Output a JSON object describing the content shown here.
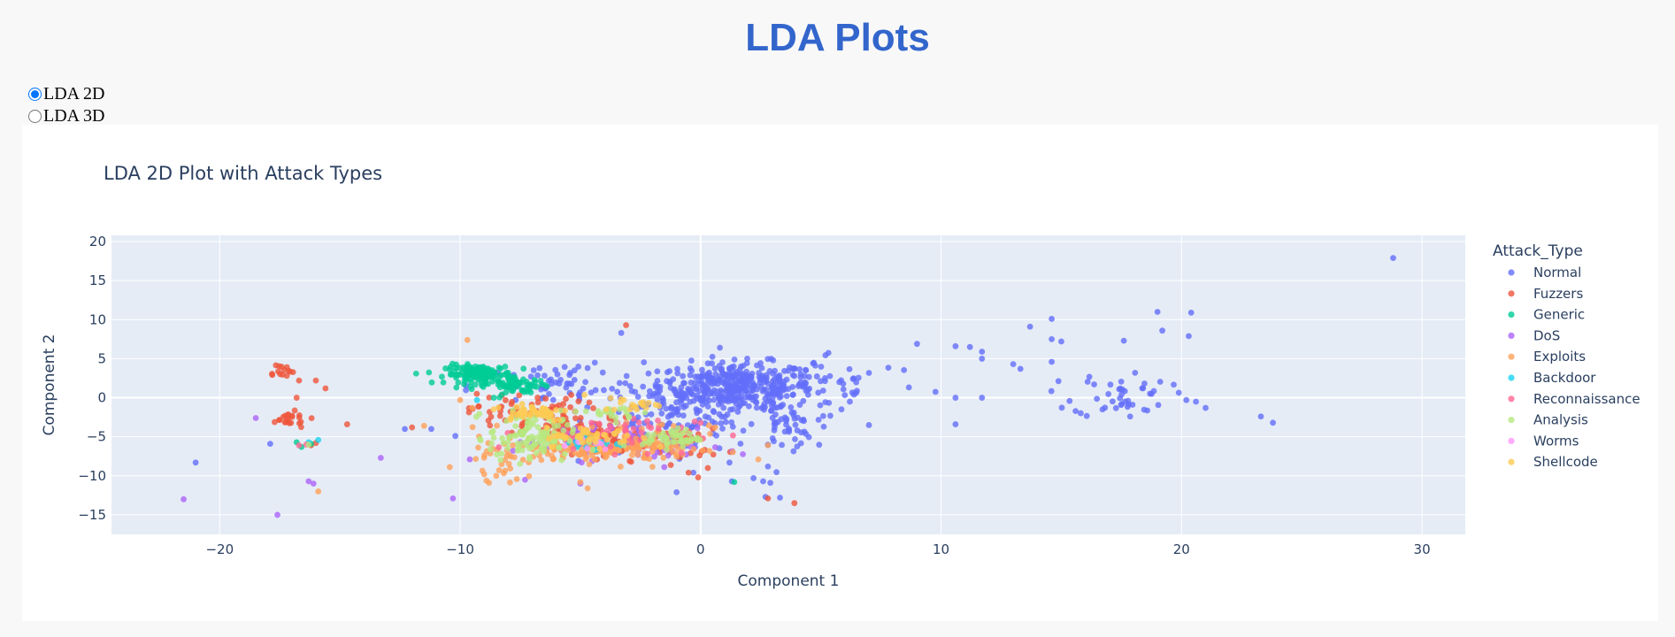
{
  "header": {
    "title": "LDA Plots"
  },
  "view_selector": {
    "options": [
      {
        "label": "LDA 2D",
        "selected": true
      },
      {
        "label": "LDA 3D",
        "selected": false
      }
    ]
  },
  "chart_data": {
    "type": "scatter",
    "title": "LDA 2D Plot with Attack Types",
    "xlabel": "Component 1",
    "ylabel": "Component 2",
    "xlim": [
      -24.5,
      31.8
    ],
    "ylim": [
      -17.5,
      20.8
    ],
    "xticks": [
      -20,
      -10,
      0,
      10,
      20,
      30
    ],
    "yticks": [
      -15,
      -10,
      -5,
      0,
      5,
      10,
      15,
      20
    ],
    "grid": true,
    "legend_title": "Attack_Type",
    "legend_position": "right",
    "series": [
      {
        "name": "Normal",
        "color": "#636efa",
        "clusters": [
          {
            "cx": 1.5,
            "cy": 1.5,
            "sx": 1.6,
            "sy": 1.5,
            "n": 380
          },
          {
            "cx": -1.0,
            "cy": -2.5,
            "sx": 1.8,
            "sy": 2.2,
            "n": 140
          },
          {
            "cx": 3.5,
            "cy": -3.5,
            "sx": 0.6,
            "sy": 1.5,
            "n": 50
          },
          {
            "cx": -6.0,
            "cy": 1.5,
            "sx": 1.8,
            "sy": 1.5,
            "n": 60
          },
          {
            "cx": 5.5,
            "cy": 2.0,
            "sx": 2.0,
            "sy": 2.0,
            "n": 50
          },
          {
            "cx": 17.5,
            "cy": 0.5,
            "sx": 1.0,
            "sy": 1.5,
            "n": 45
          }
        ],
        "points": [
          [
            28.8,
            17.9
          ],
          [
            19.0,
            11.0
          ],
          [
            20.4,
            10.9
          ],
          [
            14.6,
            10.1
          ],
          [
            13.7,
            9.1
          ],
          [
            19.2,
            8.6
          ],
          [
            20.3,
            7.9
          ],
          [
            14.6,
            7.5
          ],
          [
            15.0,
            7.2
          ],
          [
            17.6,
            7.3
          ],
          [
            9.0,
            6.9
          ],
          [
            10.6,
            6.6
          ],
          [
            11.2,
            6.5
          ],
          [
            11.7,
            5.9
          ],
          [
            11.7,
            5.0
          ],
          [
            13.0,
            4.3
          ],
          [
            13.3,
            3.7
          ],
          [
            14.6,
            4.6
          ],
          [
            10.6,
            0.0
          ],
          [
            11.7,
            0.0
          ],
          [
            20.2,
            -0.3
          ],
          [
            20.6,
            -0.5
          ],
          [
            21.0,
            -1.3
          ],
          [
            23.3,
            -2.4
          ],
          [
            23.8,
            -3.2
          ],
          [
            10.6,
            -3.4
          ],
          [
            7.0,
            -3.5
          ],
          [
            -21.0,
            -8.3
          ],
          [
            -17.9,
            -5.9
          ],
          [
            -12.3,
            -4.0
          ],
          [
            -11.2,
            -4.0
          ],
          [
            -10.2,
            -4.9
          ],
          [
            -3.3,
            8.3
          ],
          [
            1.3,
            -10.7
          ],
          [
            2.2,
            -10.3
          ],
          [
            2.6,
            -10.7
          ],
          [
            2.9,
            -10.9
          ],
          [
            2.7,
            -12.7
          ],
          [
            3.3,
            -12.8
          ],
          [
            -1.0,
            -12.1
          ],
          [
            1.2,
            -8.3
          ],
          [
            2.8,
            -8.8
          ],
          [
            -0.3,
            -9.6
          ],
          [
            -4.4,
            4.5
          ],
          [
            -4.7,
            3.8
          ]
        ]
      },
      {
        "name": "Fuzzers",
        "color": "#ef553b",
        "clusters": [
          {
            "cx": -17.5,
            "cy": 3.5,
            "sx": 0.3,
            "sy": 0.5,
            "n": 14
          },
          {
            "cx": -17.2,
            "cy": -2.8,
            "sx": 0.5,
            "sy": 0.5,
            "n": 22
          },
          {
            "cx": -7.3,
            "cy": -1.8,
            "sx": 1.2,
            "sy": 1.2,
            "n": 70
          },
          {
            "cx": -4.8,
            "cy": -4.5,
            "sx": 1.2,
            "sy": 1.0,
            "n": 70
          },
          {
            "cx": -2.0,
            "cy": -6.0,
            "sx": 1.5,
            "sy": 1.0,
            "n": 60
          }
        ],
        "points": [
          [
            -3.1,
            9.3
          ],
          [
            -16.7,
            2.2
          ],
          [
            -16.0,
            2.2
          ],
          [
            -15.6,
            1.2
          ],
          [
            -16.8,
            0.0
          ],
          [
            -14.7,
            -3.4
          ],
          [
            -16.0,
            -5.8
          ],
          [
            -16.2,
            -6.1
          ],
          [
            -0.5,
            -9.6
          ],
          [
            2.8,
            -12.9
          ],
          [
            3.9,
            -13.5
          ],
          [
            -12.0,
            -3.8
          ],
          [
            -0.1,
            -10.2
          ],
          [
            0.3,
            -9.0
          ]
        ]
      },
      {
        "name": "Generic",
        "color": "#00cc96",
        "clusters": [
          {
            "cx": -9.2,
            "cy": 3.0,
            "sx": 0.7,
            "sy": 0.6,
            "n": 140
          },
          {
            "cx": -7.6,
            "cy": 1.5,
            "sx": 0.6,
            "sy": 0.5,
            "n": 60
          }
        ],
        "points": [
          [
            -16.8,
            -5.7
          ],
          [
            -16.2,
            -5.9
          ],
          [
            -16.6,
            -6.3
          ],
          [
            1.4,
            -10.8
          ],
          [
            -8.6,
            0.0
          ]
        ]
      },
      {
        "name": "DoS",
        "color": "#ab63fa",
        "clusters": [
          {
            "cx": -4.8,
            "cy": -5.2,
            "sx": 1.5,
            "sy": 1.3,
            "n": 45
          },
          {
            "cx": -1.5,
            "cy": -6.5,
            "sx": 1.2,
            "sy": 1.0,
            "n": 25
          }
        ],
        "points": [
          [
            -21.5,
            -13.0
          ],
          [
            -18.5,
            -2.6
          ],
          [
            -17.6,
            -15.0
          ],
          [
            -16.3,
            -10.7
          ],
          [
            -16.1,
            -11.0
          ],
          [
            -10.3,
            -12.9
          ],
          [
            -9.6,
            -7.9
          ],
          [
            -13.3,
            -7.7
          ],
          [
            -5.0,
            -11.0
          ],
          [
            -7.3,
            -10.5
          ]
        ]
      },
      {
        "name": "Exploits",
        "color": "#ffa15a",
        "clusters": [
          {
            "cx": -4.0,
            "cy": -6.6,
            "sx": 1.8,
            "sy": 0.9,
            "n": 140
          },
          {
            "cx": -8.0,
            "cy": -7.5,
            "sx": 1.0,
            "sy": 1.5,
            "n": 40
          },
          {
            "cx": -1.5,
            "cy": -5.0,
            "sx": 1.0,
            "sy": 1.0,
            "n": 40
          }
        ],
        "points": [
          [
            -9.7,
            7.4
          ],
          [
            -15.9,
            -12.0
          ],
          [
            -8.8,
            -10.9
          ],
          [
            -8.5,
            -10.0
          ],
          [
            -5.0,
            -10.8
          ],
          [
            -4.7,
            -11.6
          ],
          [
            2.4,
            -7.9
          ],
          [
            2.8,
            -6.1
          ],
          [
            -9.5,
            -1.3
          ],
          [
            -10.0,
            -0.3
          ],
          [
            -11.5,
            -3.6
          ],
          [
            -9.0,
            -9.8
          ]
        ]
      },
      {
        "name": "Backdoor",
        "color": "#19d3f3",
        "clusters": [
          {
            "cx": -4.5,
            "cy": -5.8,
            "sx": 0.8,
            "sy": 0.6,
            "n": 18
          }
        ],
        "points": [
          [
            -16.3,
            -5.7
          ],
          [
            -15.9,
            -5.4
          ],
          [
            -9.3,
            -0.3
          ]
        ]
      },
      {
        "name": "Reconnaissance",
        "color": "#ff6692",
        "clusters": [
          {
            "cx": -3.8,
            "cy": -4.5,
            "sx": 1.8,
            "sy": 1.2,
            "n": 45
          }
        ],
        "points": [
          [
            -16.4,
            -6.0
          ],
          [
            -16.7,
            -6.1
          ],
          [
            -2.2,
            -7.2
          ]
        ]
      },
      {
        "name": "Analysis",
        "color": "#b6e880",
        "clusters": [
          {
            "cx": -7.0,
            "cy": -5.0,
            "sx": 0.9,
            "sy": 1.6,
            "n": 120
          },
          {
            "cx": -1.2,
            "cy": -5.2,
            "sx": 0.6,
            "sy": 0.6,
            "n": 45
          },
          {
            "cx": -3.2,
            "cy": -2.0,
            "sx": 0.6,
            "sy": 0.5,
            "n": 20
          }
        ],
        "points": [
          [
            -16.3,
            -6.0
          ]
        ]
      },
      {
        "name": "Worms",
        "color": "#ff97ff",
        "clusters": [
          {
            "cx": -5.0,
            "cy": -6.0,
            "sx": 0.8,
            "sy": 0.6,
            "n": 8
          }
        ],
        "points": []
      },
      {
        "name": "Shellcode",
        "color": "#fecb52",
        "clusters": [
          {
            "cx": -7.0,
            "cy": -1.8,
            "sx": 0.8,
            "sy": 0.6,
            "n": 45
          },
          {
            "cx": -4.5,
            "cy": -5.0,
            "sx": 1.0,
            "sy": 0.6,
            "n": 45
          },
          {
            "cx": -2.8,
            "cy": -0.7,
            "sx": 0.6,
            "sy": 0.5,
            "n": 20
          }
        ],
        "points": []
      }
    ]
  }
}
